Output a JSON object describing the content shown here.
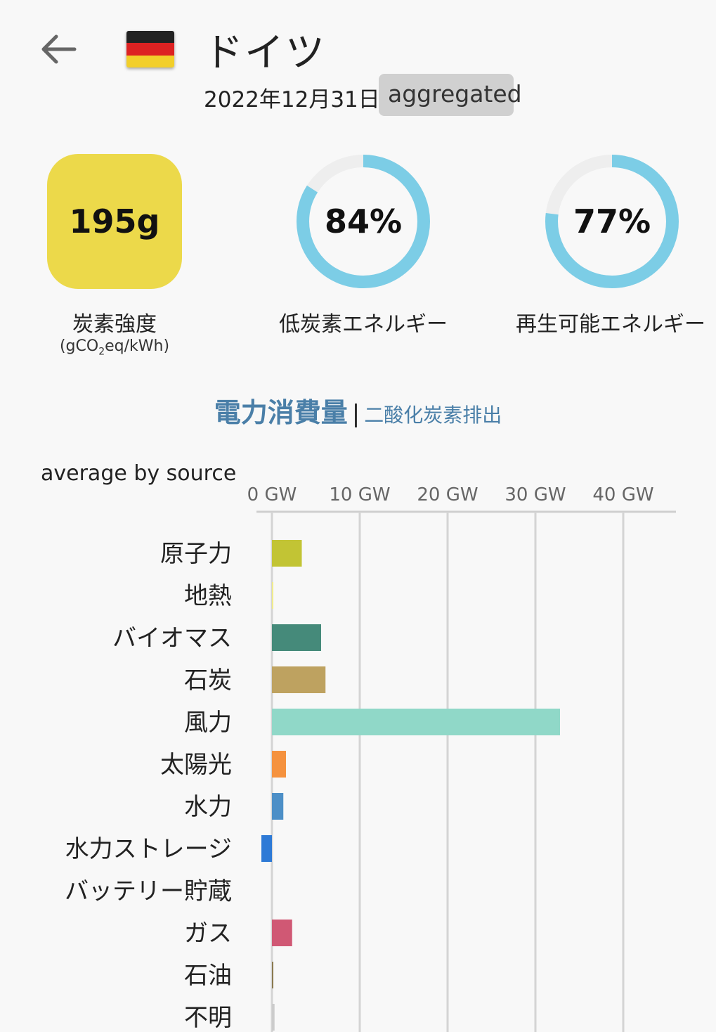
{
  "header": {
    "title": "ドイツ",
    "date": "2022年12月31日",
    "badge": "aggregated",
    "flag_colors": [
      "#222222",
      "#dd2222",
      "#f2cf2a"
    ]
  },
  "metrics": {
    "carbon_intensity": {
      "value": "195g",
      "label": "炭素強度",
      "unit_prefix": "(gCO",
      "unit_sub": "2",
      "unit_suffix": "eq/kWh)",
      "color": "#ecd94a"
    },
    "low_carbon": {
      "value_text": "84%",
      "value": 84,
      "label": "低炭素エネルギー",
      "color": "#7ccde6"
    },
    "renewable": {
      "value_text": "77%",
      "value": 77,
      "label": "再生可能エネルギー",
      "color": "#7ccde6"
    }
  },
  "toggle": {
    "consumption": "電力消費量",
    "separator": "|",
    "emissions": "二酸化炭素排出"
  },
  "chart_data": {
    "type": "bar",
    "orientation": "horizontal",
    "title": "average by source",
    "x_ticks": [
      "0 GW",
      "10 GW",
      "20 GW",
      "30 GW",
      "40 GW"
    ],
    "xlim": [
      0,
      46
    ],
    "categories": [
      "原子力",
      "地熱",
      "バイオマス",
      "石炭",
      "風力",
      "太陽光",
      "水力",
      "水力ストレージ",
      "バッテリー貯蔵",
      "ガス",
      "石油",
      "不明"
    ],
    "values": [
      3.4,
      0.1,
      5.6,
      6.1,
      32.8,
      1.6,
      1.3,
      -1.2,
      0,
      2.3,
      0.1,
      0.3
    ],
    "colors": [
      "#c2c434",
      "#f0ec8c",
      "#458a7a",
      "#bea260",
      "#90d8c8",
      "#f5923e",
      "#4d8fc7",
      "#2e7ad6",
      "#a0a0a0",
      "#d05874",
      "#8a7a50",
      "#cccccc"
    ]
  }
}
